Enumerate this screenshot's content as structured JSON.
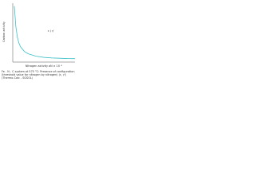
{
  "chart_data": {
    "type": "line",
    "y_label": "Carbon activity",
    "x_label": "Nitrogen activity aN × 10⁻³",
    "caption": "Fe - N - C system at 575 °C: Presence of configuration (threshold value for nitrogen by nitrogen) (ε, γ') (Thermo-Calc - SGSOL)",
    "x": [
      0.2,
      0.4,
      0.6,
      0.8,
      1,
      1.5,
      2,
      3,
      4,
      5,
      6,
      7,
      8
    ],
    "series": [
      {
        "name": "ε / γ'",
        "color": "#3cc0c8",
        "values": [
          0.95,
          0.6,
          0.42,
          0.32,
          0.26,
          0.18,
          0.14,
          0.1,
          0.08,
          0.07,
          0.065,
          0.06,
          0.058
        ]
      }
    ],
    "xlim": [
      0,
      8
    ],
    "ylim": [
      0,
      1
    ]
  }
}
